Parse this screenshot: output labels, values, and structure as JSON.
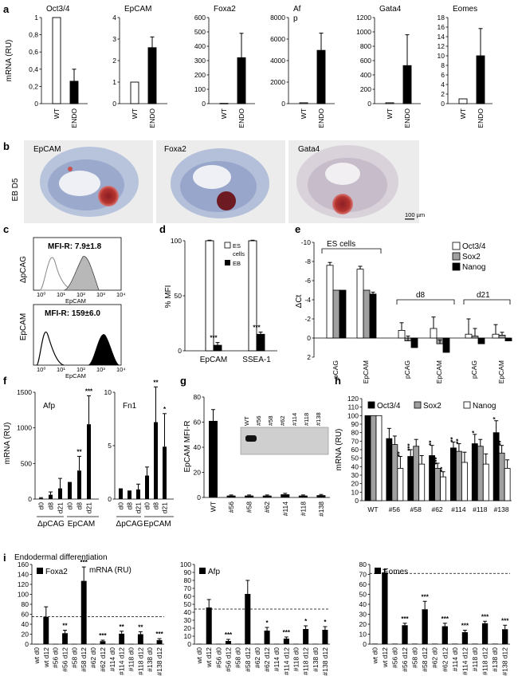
{
  "panel_labels": {
    "a": "a",
    "b": "b",
    "c": "c",
    "d": "d",
    "e": "e",
    "f": "f",
    "g": "g",
    "h": "h",
    "i": "i"
  },
  "colors": {
    "white_bar": "#ffffff",
    "black_bar": "#000000",
    "gray_bar": "#a0a0a0",
    "tissue_blue": "#8ea0c8",
    "stain_red": "#b5342f"
  },
  "micro": {
    "row_label": "EB D5",
    "titles": [
      "EpCAM",
      "Foxa2",
      "Gata4"
    ],
    "scalebar": "100 µm"
  },
  "flow": {
    "top": {
      "ylabel": "ΔpCAG",
      "mfi": "MFI-R:  7.9±1.8",
      "xlabel": "EpCAM"
    },
    "bottom": {
      "ylabel": "EpCAM",
      "mfi": "MFI-R:  159±6.0",
      "xlabel": "EpCAM"
    },
    "ticks": [
      "10⁰",
      "10¹",
      "10²",
      "10³",
      "10⁴"
    ]
  },
  "i_header": {
    "title": "Endodermal differentiation",
    "mrna": "mRNA (RU)"
  },
  "chart_data": [
    {
      "id": "a1",
      "type": "bar",
      "title": "Oct3/4",
      "ylabel": "mRNA (RU)",
      "categories": [
        "WT",
        "ENDO"
      ],
      "values": [
        1.0,
        0.26
      ],
      "errors": [
        0,
        0.14
      ],
      "colors": [
        "white",
        "black"
      ],
      "ylim": [
        0,
        1
      ],
      "yticks": [
        0,
        0.2,
        0.4,
        0.6,
        0.8,
        1
      ],
      "yticklabels": [
        "0",
        "0,2",
        "0,4",
        "0,6",
        "0,8",
        "1"
      ]
    },
    {
      "id": "a2",
      "type": "bar",
      "title": "EpCAM",
      "categories": [
        "WT",
        "ENDO"
      ],
      "values": [
        1.0,
        2.6
      ],
      "errors": [
        0,
        0.5
      ],
      "colors": [
        "white",
        "black"
      ],
      "ylim": [
        0,
        4
      ],
      "yticks": [
        0,
        1,
        2,
        3,
        4
      ],
      "yticklabels": [
        "0",
        "1",
        "2",
        "3",
        "4"
      ]
    },
    {
      "id": "a3",
      "type": "bar",
      "title": "Foxa2",
      "categories": [
        "WT",
        "ENDO"
      ],
      "values": [
        2,
        320
      ],
      "errors": [
        0,
        170
      ],
      "colors": [
        "white",
        "black"
      ],
      "ylim": [
        0,
        600
      ],
      "yticks": [
        0,
        100,
        200,
        300,
        400,
        500,
        600
      ],
      "yticklabels": [
        "0",
        "100",
        "200",
        "300",
        "400",
        "500",
        "600"
      ]
    },
    {
      "id": "a4",
      "type": "bar",
      "title": "Af",
      "title2": "p",
      "categories": [
        "WT",
        "ENDO"
      ],
      "values": [
        80,
        4950
      ],
      "errors": [
        0,
        1600
      ],
      "colors": [
        "white",
        "black"
      ],
      "ylim": [
        0,
        8000
      ],
      "yticks": [
        0,
        2000,
        4000,
        6000,
        8000
      ],
      "yticklabels": [
        "0",
        "2000",
        "4000",
        "6000",
        "8000"
      ]
    },
    {
      "id": "a5",
      "type": "bar",
      "title": "Gata4",
      "categories": [
        "WT",
        "ENDO"
      ],
      "values": [
        12,
        530
      ],
      "errors": [
        0,
        430
      ],
      "colors": [
        "white",
        "black"
      ],
      "ylim": [
        0,
        1200
      ],
      "yticks": [
        0,
        200,
        400,
        600,
        800,
        1000,
        1200
      ],
      "yticklabels": [
        "0",
        "200",
        "400",
        "600",
        "800",
        "1000",
        "1200"
      ]
    },
    {
      "id": "a6",
      "type": "bar",
      "title": "Eomes",
      "categories": [
        "WT",
        "ENDO"
      ],
      "values": [
        1,
        10
      ],
      "errors": [
        0,
        5.7
      ],
      "colors": [
        "white",
        "black"
      ],
      "ylim": [
        0,
        18
      ],
      "yticks": [
        0,
        2,
        4,
        6,
        8,
        10,
        12,
        14,
        16,
        18
      ],
      "yticklabels": [
        "0",
        "2",
        "4",
        "6",
        "8",
        "10",
        "12",
        "14",
        "16",
        "18"
      ]
    },
    {
      "id": "d",
      "type": "bar",
      "ylabel": "% MFI",
      "categories": [
        "EpCAM",
        "SSEA-1"
      ],
      "series": [
        {
          "name": "ES cells",
          "values": [
            100,
            100
          ],
          "errors": [
            0.5,
            0.5
          ],
          "color": "white"
        },
        {
          "name": "EB",
          "values": [
            5,
            15
          ],
          "errors": [
            2.5,
            2
          ],
          "color": "black"
        }
      ],
      "ylim": [
        0,
        100
      ],
      "yticks": [
        0,
        50,
        100
      ],
      "yticklabels": [
        "0",
        "50",
        "100"
      ],
      "stars": [
        "***",
        "***"
      ],
      "legend": [
        "ES",
        "cells",
        "EB"
      ]
    },
    {
      "id": "e",
      "type": "bar",
      "ylabel": "ΔCt",
      "inverted": true,
      "categories": [
        "pCAG",
        "EpCAM",
        "pCAG",
        "EpCAM",
        "pCAG",
        "EpCAM"
      ],
      "groups": [
        "ES cells",
        "d8",
        "d21"
      ],
      "series": [
        {
          "name": "Oct3/4",
          "values": [
            -7.6,
            -7.2,
            -0.8,
            -1.0,
            -0.4,
            -0.4
          ],
          "errors": [
            0.3,
            0.3,
            0.8,
            1.2,
            1.6,
            1.0
          ],
          "color": "white"
        },
        {
          "name": "Sox2",
          "values": [
            -5,
            -5,
            0.3,
            0.6,
            -0.2,
            -0.3
          ],
          "errors": [
            0,
            0,
            0.5,
            0.4,
            0.8,
            0.3
          ],
          "color": "gray"
        },
        {
          "name": "Nanog",
          "values": [
            -5,
            -4.6,
            1.0,
            1.5,
            0.6,
            0.3
          ],
          "errors": [
            0,
            0.2,
            0,
            0,
            0,
            0
          ],
          "color": "black"
        }
      ],
      "ylim": [
        -10,
        2
      ],
      "yticks": [
        -10,
        -8,
        -6,
        -4,
        -2,
        0,
        2
      ],
      "yticklabels": [
        "-10",
        "-8",
        "-6",
        "-4",
        "-2",
        "0",
        "2"
      ]
    },
    {
      "id": "f1",
      "type": "bar",
      "title": "Afp",
      "ylabel": "mRNA (RU)",
      "categories": [
        "d0",
        "d8",
        "d21",
        "d0",
        "d8",
        "d21"
      ],
      "groups": [
        "ΔpCAG",
        "EpCAM"
      ],
      "values": [
        10,
        60,
        150,
        240,
        400,
        1050
      ],
      "errors": [
        10,
        40,
        140,
        0,
        200,
        400
      ],
      "stars": [
        "",
        "",
        "",
        "",
        "**",
        "***"
      ],
      "ylim": [
        0,
        1500
      ],
      "yticks": [
        0,
        500,
        1000,
        1500
      ],
      "yticklabels": [
        "0",
        "500",
        "1000",
        "1500"
      ]
    },
    {
      "id": "f2",
      "type": "bar",
      "title": "Fn1",
      "categories": [
        "d0",
        "d8",
        "d21",
        "d0",
        "d8",
        "d21"
      ],
      "groups": [
        "ΔpCAG",
        "EpCAM"
      ],
      "values": [
        1.0,
        0.8,
        0.9,
        2.2,
        7.2,
        4.9
      ],
      "errors": [
        0,
        0,
        0.5,
        0.8,
        3.3,
        3.1
      ],
      "stars": [
        "",
        "",
        "",
        "",
        "**",
        "*"
      ],
      "ylim": [
        0,
        10
      ],
      "yticks": [
        0,
        5,
        10
      ],
      "yticklabels": [
        "0",
        "5",
        "10"
      ]
    },
    {
      "id": "g",
      "type": "bar",
      "ylabel": "EpCAM MFI-R",
      "categories": [
        "WT",
        "#56",
        "#58",
        "#62",
        "#114",
        "#118",
        "#138"
      ],
      "values": [
        61,
        1.5,
        1.5,
        1.5,
        2.5,
        1.5,
        1.8
      ],
      "errors": [
        9,
        0.5,
        0.5,
        0.5,
        0.8,
        0.5,
        0.6
      ],
      "ylim": [
        0,
        80
      ],
      "yticks": [
        0,
        20,
        40,
        60,
        80
      ],
      "yticklabels": [
        "0",
        "20",
        "40",
        "60",
        "80"
      ],
      "inset_labels": [
        "WT",
        "#56",
        "#58",
        "#62",
        "#114",
        "#118",
        "#138"
      ]
    },
    {
      "id": "h",
      "type": "bar",
      "ylabel": "mRNA (RU)",
      "categories": [
        "WT",
        "#56",
        "#58",
        "#62",
        "#114",
        "#118",
        "#138"
      ],
      "series": [
        {
          "name": "Oct3/4",
          "values": [
            100,
            73,
            52,
            53,
            62,
            67,
            80
          ],
          "errors": [
            0,
            12,
            8,
            12,
            7,
            11,
            14
          ],
          "color": "black"
        },
        {
          "name": "Sox2",
          "values": [
            100,
            66,
            64,
            38,
            58,
            64,
            56
          ],
          "errors": [
            0,
            10,
            8,
            6,
            9,
            8,
            9
          ],
          "color": "gray"
        },
        {
          "name": "Nanog",
          "values": [
            100,
            38,
            43,
            28,
            45,
            43,
            38
          ],
          "errors": [
            0,
            14,
            10,
            6,
            12,
            12,
            10
          ],
          "color": "white"
        }
      ],
      "stars": [
        [
          "",
          "",
          ""
        ],
        [
          "",
          "",
          "**"
        ],
        [
          "***",
          "",
          ""
        ],
        [
          "**",
          "***",
          "**"
        ],
        [
          "**",
          "**",
          ""
        ],
        [
          "*",
          "",
          ""
        ],
        [
          "*",
          "**",
          ""
        ]
      ],
      "ylim": [
        0,
        120
      ],
      "yticks": [
        0,
        10,
        20,
        30,
        40,
        50,
        60,
        70,
        80,
        90,
        100,
        110,
        120
      ],
      "yticklabels": [
        "0",
        "10",
        "20",
        "30",
        "40",
        "50",
        "60",
        "70",
        "80",
        "90",
        "100",
        "110",
        "120"
      ]
    },
    {
      "id": "i1",
      "type": "bar",
      "title": "Foxa2",
      "categories": [
        "wt d0",
        "wt d12",
        "#56 d0",
        "#56 d12",
        "#58 d0",
        "#58 d12",
        "#62 d0",
        "#62 d12",
        "#114 d0",
        "#114 d12",
        "#118 d0",
        "#118 d12",
        "#138 d0",
        "#138 d12"
      ],
      "values": [
        0.5,
        55,
        0.5,
        22,
        0.5,
        127,
        0.5,
        6,
        0.5,
        21,
        0.5,
        20,
        0.5,
        8
      ],
      "errors": [
        0,
        20,
        0,
        6,
        0,
        28,
        0,
        2,
        0,
        5,
        0,
        5,
        0,
        3
      ],
      "stars": [
        "",
        "",
        "",
        "**",
        "",
        "***",
        "",
        "***",
        "",
        "**",
        "",
        "**",
        "",
        "***"
      ],
      "dashed": 55,
      "ylim": [
        0,
        160
      ],
      "yticks": [
        0,
        20,
        40,
        60,
        80,
        100,
        120,
        140,
        160
      ],
      "yticklabels": [
        "0",
        "20",
        "40",
        "60",
        "80",
        "100",
        "120",
        "140",
        "160"
      ]
    },
    {
      "id": "i2",
      "type": "bar",
      "title": "Afp",
      "categories": [
        "wt d0",
        "wt d12",
        "#56 d0",
        "#56 d12",
        "#58 d0",
        "#58 d12",
        "#62 d0",
        "#62 d12",
        "#114 d0",
        "#114 d12",
        "#118 d0",
        "#118 d12",
        "#138 d0",
        "#138 d12"
      ],
      "values": [
        0.5,
        46,
        0.5,
        4,
        0.5,
        63,
        0.5,
        17,
        0.5,
        7,
        0.5,
        19,
        0.5,
        18
      ],
      "errors": [
        0,
        10,
        0,
        2,
        0,
        17,
        0,
        4,
        0,
        2,
        0,
        4,
        0,
        4
      ],
      "stars": [
        "",
        "",
        "",
        "***",
        "",
        "",
        "",
        "*",
        "",
        "***",
        "",
        "*",
        "",
        "*"
      ],
      "dashed": 44,
      "ylim": [
        0,
        100
      ],
      "yticks": [
        0,
        10,
        20,
        30,
        40,
        50,
        60,
        70,
        80,
        90,
        100
      ],
      "yticklabels": [
        "0",
        "10",
        "20",
        "30",
        "40",
        "50",
        "60",
        "70",
        "80",
        "90",
        "100"
      ]
    },
    {
      "id": "i3",
      "type": "bar",
      "title": "Eomes",
      "categories": [
        "wt d0",
        "wt d12",
        "#56 d0",
        "#56 d12",
        "#58 d0",
        "#58 d12",
        "#62 d0",
        "#62 d12",
        "#114 d0",
        "#114 d12",
        "#118 d0",
        "#118 d12",
        "#138 d0",
        "#138 d12"
      ],
      "values": [
        0.5,
        72,
        0.5,
        19,
        0.5,
        35,
        0.5,
        18,
        0.5,
        12,
        0.5,
        21,
        0.5,
        15
      ],
      "errors": [
        0,
        3,
        0,
        2,
        0,
        8,
        0,
        3,
        0,
        2,
        0,
        2,
        0,
        4
      ],
      "stars": [
        "",
        "",
        "",
        "***",
        "",
        "***",
        "",
        "***",
        "",
        "***",
        "",
        "***",
        "",
        "***"
      ],
      "dashed": 71,
      "ylim": [
        0,
        80
      ],
      "yticks": [
        0,
        10,
        20,
        30,
        40,
        50,
        60,
        70,
        80
      ],
      "yticklabels": [
        "0",
        "10",
        "20",
        "30",
        "40",
        "50",
        "60",
        "70",
        "80"
      ]
    }
  ]
}
